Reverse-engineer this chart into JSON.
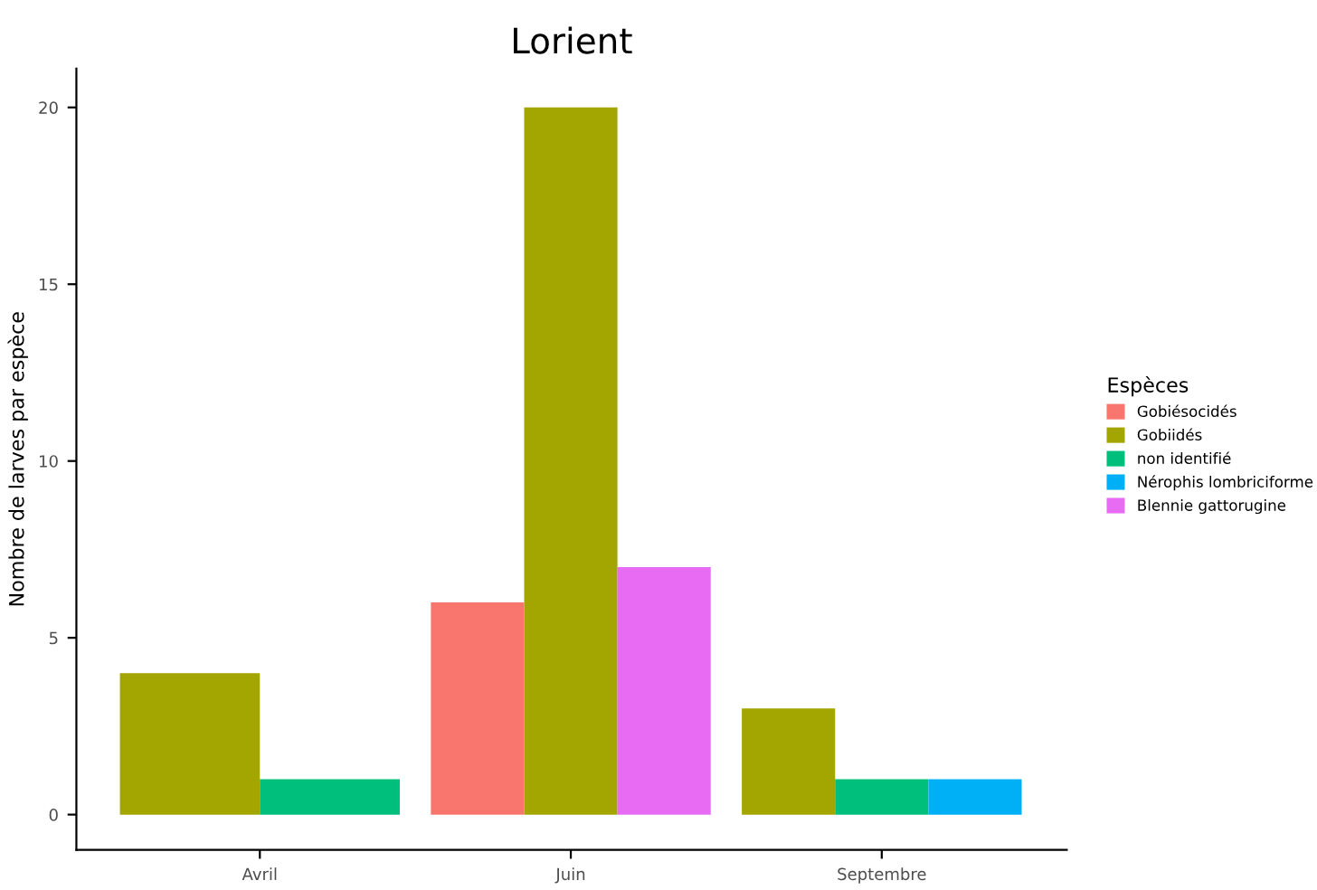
{
  "chart_data": {
    "type": "bar",
    "title": "Lorient",
    "ylabel": "Nombre de larves par espèce",
    "legend_title": "Espèces",
    "categories": [
      "Avril",
      "Juin",
      "Septembre"
    ],
    "series": [
      {
        "name": "Gobiésocidés",
        "color": "#f8766d",
        "values": [
          null,
          6,
          null
        ]
      },
      {
        "name": "Gobiidés",
        "color": "#a3a500",
        "values": [
          4,
          20,
          3
        ]
      },
      {
        "name": "non identifié",
        "color": "#00bf7d",
        "values": [
          1,
          null,
          1
        ]
      },
      {
        "name": "Nérophis lombriciforme",
        "color": "#00b0f6",
        "values": [
          null,
          null,
          1
        ]
      },
      {
        "name": "Blennie gattorugine",
        "color": "#e76bf3",
        "values": [
          null,
          7,
          null
        ]
      }
    ],
    "ylim": [
      -1,
      21.1
    ],
    "yticks": [
      0,
      5,
      10,
      15,
      20
    ],
    "grid": false,
    "legend": "right"
  }
}
